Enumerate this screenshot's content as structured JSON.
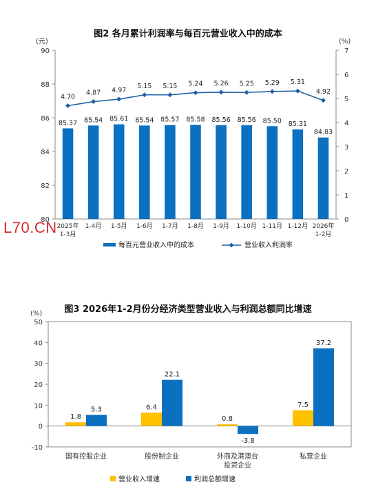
{
  "watermark": "L70.CN",
  "colors": {
    "blue": "#0b70c0",
    "yellow": "#ffc000",
    "axis": "#888888",
    "line": "#1f5fa8"
  },
  "chart_data": [
    {
      "type": "bar",
      "title": "图2  各月累计利润率与每百元营业收入中的成本",
      "left_unit": "(元)",
      "right_unit": "(%)",
      "categories": [
        "2025年1-3月",
        "1-4月",
        "1-5月",
        "1-6月",
        "1-7月",
        "1-8月",
        "1-9月",
        "1-10月",
        "1-11月",
        "1-12月",
        "2026年1-2月"
      ],
      "series": [
        {
          "name": "每百元营业收入中的成本",
          "type": "bar",
          "axis": "left",
          "values": [
            85.37,
            85.54,
            85.61,
            85.54,
            85.57,
            85.58,
            85.56,
            85.56,
            85.5,
            85.31,
            84.83
          ],
          "labels": [
            "85.37",
            "85.54",
            "85.61",
            "85.54",
            "85.57",
            "85.58",
            "85.56",
            "85.56",
            "85.50",
            "85.31",
            "84.83"
          ]
        },
        {
          "name": "营业收入利润率",
          "type": "line",
          "axis": "right",
          "values": [
            4.7,
            4.87,
            4.97,
            5.15,
            5.15,
            5.24,
            5.26,
            5.25,
            5.29,
            5.31,
            4.92
          ],
          "labels": [
            "4.70",
            "4.87",
            "4.97",
            "5.15",
            "5.15",
            "5.24",
            "5.26",
            "5.25",
            "5.29",
            "5.31",
            "4.92"
          ]
        }
      ],
      "ylim_left": [
        80,
        90
      ],
      "yticks_left": [
        80,
        82,
        84,
        86,
        88,
        90
      ],
      "ylim_right": [
        0,
        7
      ],
      "yticks_right": [
        0,
        1,
        2,
        3,
        4,
        5,
        6,
        7
      ],
      "grid": false,
      "legend": "bottom"
    },
    {
      "type": "bar",
      "title": "图3  2026年1-2月份分经济类型营业收入与利润总额同比增速",
      "y_unit": "(%)",
      "categories": [
        "国有控股企业",
        "股份制企业",
        "外商及港澳台投资企业",
        "私营企业"
      ],
      "series": [
        {
          "name": "营业收入增速",
          "values": [
            1.8,
            6.4,
            0.8,
            7.5
          ],
          "labels": [
            "1.8",
            "6.4",
            "0.8",
            "7.5"
          ]
        },
        {
          "name": "利润总额增速",
          "values": [
            5.3,
            22.1,
            -3.8,
            37.2
          ],
          "labels": [
            "5.3",
            "22.1",
            "-3.8",
            "37.2"
          ]
        }
      ],
      "ylim": [
        -10,
        50
      ],
      "yticks": [
        -10,
        0,
        10,
        20,
        30,
        40,
        50
      ],
      "grid": false,
      "legend": "bottom"
    }
  ]
}
